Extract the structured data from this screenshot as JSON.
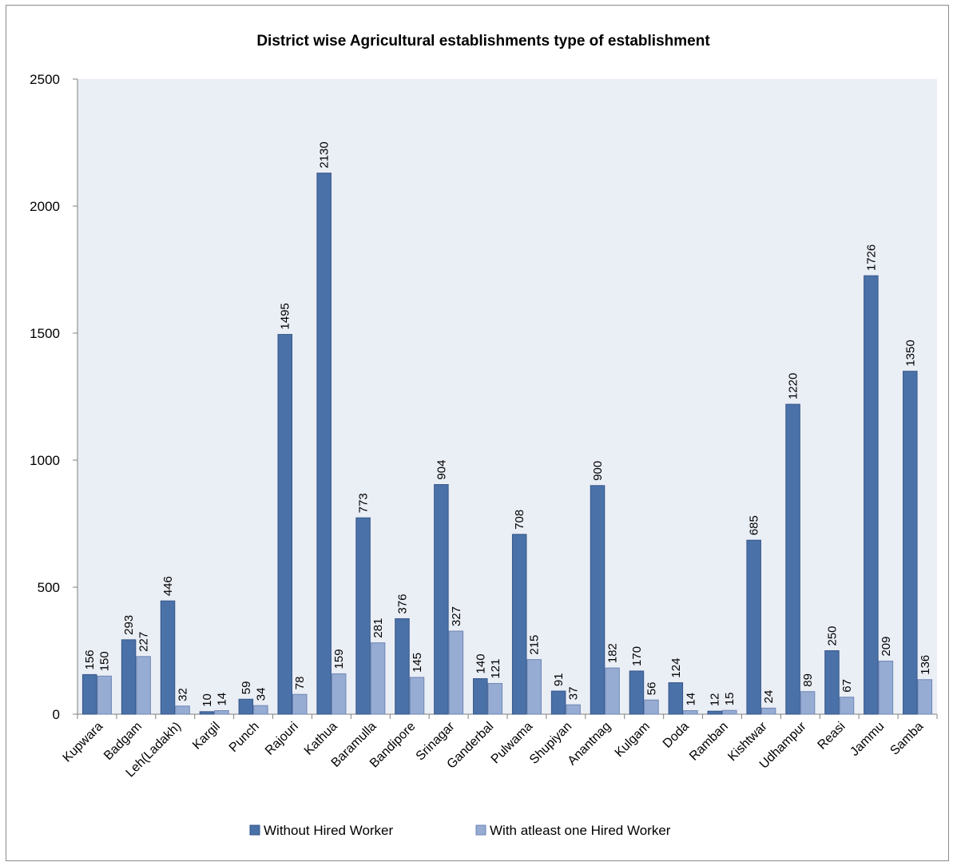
{
  "chart_data": {
    "type": "bar",
    "title": "District wise Agricultural establishments  type of establishment",
    "xlabel": "",
    "ylabel": "",
    "ylim": [
      0,
      2500
    ],
    "yticks": [
      0,
      500,
      1000,
      1500,
      2000,
      2500
    ],
    "grid": false,
    "legend_position": "bottom",
    "categories": [
      "Kupwara",
      "Badgam",
      "Leh(Ladakh)",
      "Kargil",
      "Punch",
      "Rajouri",
      "Kathua",
      "Baramulla",
      "Bandipore",
      "Srinagar",
      "Ganderbal",
      "Pulwama",
      "Shupiyan",
      "Anantnag",
      "Kulgam",
      "Doda",
      "Ramban",
      "Kishtwar",
      "Udhampur",
      "Reasi",
      "Jammu",
      "Samba"
    ],
    "series": [
      {
        "name": "Without Hired Worker",
        "color": "#4a71a8",
        "values": [
          156,
          293,
          446,
          10,
          59,
          1495,
          2130,
          773,
          376,
          904,
          140,
          708,
          91,
          900,
          170,
          124,
          12,
          685,
          1220,
          250,
          1726,
          1350
        ]
      },
      {
        "name": "With atleast one Hired Worker",
        "color": "#97acd3",
        "values": [
          150,
          227,
          32,
          14,
          34,
          78,
          159,
          281,
          145,
          327,
          121,
          215,
          37,
          182,
          56,
          14,
          15,
          24,
          89,
          67,
          209,
          136
        ]
      }
    ],
    "plot_background": "#eaeef5"
  }
}
